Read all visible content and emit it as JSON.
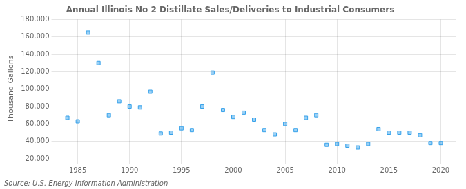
{
  "chart_data": {
    "type": "scatter",
    "title": "Annual Illinois No 2 Distillate Sales/Deliveries to Industrial Consumers",
    "ylabel": "Thousand Gallons",
    "annotation": "Source: U.S. Energy Information Administration",
    "x": [
      1984,
      1985,
      1986,
      1987,
      1988,
      1989,
      1990,
      1991,
      1992,
      1993,
      1994,
      1995,
      1996,
      1997,
      1998,
      1999,
      2000,
      2001,
      2002,
      2003,
      2004,
      2005,
      2006,
      2007,
      2008,
      2009,
      2010,
      2011,
      2012,
      2013,
      2014,
      2015,
      2016,
      2017,
      2018,
      2019,
      2020
    ],
    "values": [
      67000,
      63000,
      165000,
      130000,
      70000,
      86000,
      80000,
      79000,
      97000,
      49000,
      50000,
      55000,
      53000,
      80000,
      119000,
      76000,
      68000,
      73000,
      65000,
      53000,
      48000,
      60000,
      53000,
      67000,
      70000,
      36000,
      37000,
      35000,
      33000,
      37000,
      54000,
      50000,
      50000,
      50000,
      47000,
      38000,
      38000
    ],
    "xlim": [
      1983,
      2021.5
    ],
    "xticks": [
      1985,
      1990,
      1995,
      2000,
      2005,
      2010,
      2015,
      2020
    ],
    "ylim": [
      20000,
      180000
    ],
    "yticks": [
      {
        "value": 20000,
        "label": "20,000"
      },
      {
        "value": 40000,
        "label": "40,000"
      },
      {
        "value": 60000,
        "label": "60,000"
      },
      {
        "value": 80000,
        "label": "80,000"
      },
      {
        "value": 100000,
        "label": "100,000"
      },
      {
        "value": 120000,
        "label": "120,000"
      },
      {
        "value": 140000,
        "label": "140,000"
      },
      {
        "value": 160000,
        "label": "160,000"
      },
      {
        "value": 180000,
        "label": "180,000"
      }
    ],
    "grid": true,
    "marker": "square"
  }
}
